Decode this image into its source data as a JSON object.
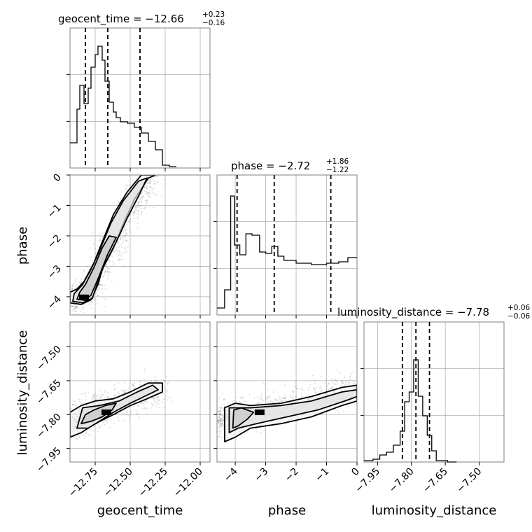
{
  "chart_data": {
    "type": "corner",
    "parameters": [
      "geocent_time",
      "phase",
      "luminosity_distance"
    ],
    "colors": {
      "line": "#000000",
      "grid": "#b0b0b0",
      "points": "#000000",
      "frame": "#808080"
    },
    "grid": true,
    "titles": [
      {
        "name": "geocent_time",
        "median": "−12.66",
        "plus": "+0.23",
        "minus": "−0.16"
      },
      {
        "name": "phase",
        "median": "−2.72",
        "plus": "+1.86",
        "minus": "−1.22"
      },
      {
        "name": "luminosity_distance",
        "median": "−7.78",
        "plus": "+0.06",
        "minus": "−0.06"
      }
    ],
    "axes": [
      {
        "label": "geocent_time",
        "range": [
          -12.93,
          -11.93
        ],
        "ticks": [
          -12.75,
          -12.5,
          -12.25,
          -12.0
        ],
        "tick_labels": [
          "−12.75",
          "−12.50",
          "−12.25",
          "−12.00"
        ]
      },
      {
        "label": "phase",
        "range": [
          -4.6,
          0.0
        ],
        "ticks": [
          -4,
          -3,
          -2,
          -1,
          0
        ],
        "tick_labels": [
          "−4",
          "−3",
          "−2",
          "−1",
          "0"
        ]
      },
      {
        "label": "luminosity_distance",
        "range": [
          -8.01,
          -7.39
        ],
        "ticks": [
          -7.95,
          -7.8,
          -7.65,
          -7.5
        ],
        "tick_labels": [
          "−7.95",
          "−7.80",
          "−7.65",
          "−7.50"
        ]
      }
    ],
    "hist_ylim": [
      0,
      1.0
    ],
    "histograms": [
      {
        "param": "geocent_time",
        "bin_edges": [
          -12.93,
          -12.88,
          -12.86,
          -12.83,
          -12.8,
          -12.78,
          -12.75,
          -12.73,
          -12.7,
          -12.68,
          -12.65,
          -12.62,
          -12.6,
          -12.57,
          -12.52,
          -12.47,
          -12.42,
          -12.37,
          -12.32,
          -12.27,
          -12.22,
          -12.17
        ],
        "counts": [
          0.18,
          0.42,
          0.59,
          0.46,
          0.57,
          0.72,
          0.81,
          0.87,
          0.77,
          0.62,
          0.47,
          0.4,
          0.36,
          0.33,
          0.32,
          0.29,
          0.25,
          0.19,
          0.13,
          0.02,
          0.01
        ],
        "quantiles": [
          -12.82,
          -12.66,
          -12.43
        ]
      },
      {
        "param": "phase",
        "bin_edges": [
          -4.6,
          -4.35,
          -4.15,
          -4.03,
          -3.85,
          -3.65,
          -3.45,
          -3.2,
          -3.0,
          -2.8,
          -2.6,
          -2.4,
          -2.0,
          -1.5,
          -1.0,
          -0.6,
          -0.3,
          0.0
        ],
        "counts": [
          0.05,
          0.18,
          0.85,
          0.5,
          0.43,
          0.58,
          0.57,
          0.45,
          0.44,
          0.49,
          0.42,
          0.39,
          0.37,
          0.36,
          0.37,
          0.38,
          0.41
        ],
        "quantiles": [
          -3.94,
          -2.72,
          -0.86
        ]
      },
      {
        "param": "luminosity_distance",
        "bin_edges": [
          -8.01,
          -7.97,
          -7.94,
          -7.91,
          -7.88,
          -7.85,
          -7.83,
          -7.81,
          -7.79,
          -7.77,
          -7.75,
          -7.73,
          -7.71,
          -7.69,
          -7.67,
          -7.64,
          -7.6
        ],
        "counts": [
          0.01,
          0.02,
          0.05,
          0.07,
          0.12,
          0.22,
          0.43,
          0.5,
          0.73,
          0.47,
          0.33,
          0.19,
          0.08,
          0.01,
          0.01,
          0.0
        ],
        "quantiles": [
          -7.84,
          -7.78,
          -7.72
        ]
      }
    ],
    "scatter_blobs": [
      {
        "x_param": "geocent_time",
        "y_param": "phase",
        "trend": [
          [
            -12.93,
            -4.1
          ],
          [
            -12.85,
            -4.0
          ],
          [
            -12.75,
            -3.5
          ],
          [
            -12.66,
            -2.6
          ],
          [
            -12.6,
            -2.0
          ],
          [
            -12.5,
            -1.2
          ],
          [
            -12.45,
            -0.6
          ],
          [
            -12.32,
            0.0
          ]
        ],
        "spread": [
          0.045,
          0.25
        ]
      },
      {
        "x_param": "geocent_time",
        "y_param": "luminosity_distance",
        "trend": [
          [
            -12.93,
            -7.86
          ],
          [
            -12.82,
            -7.8
          ],
          [
            -12.72,
            -7.78
          ],
          [
            -12.6,
            -7.75
          ],
          [
            -12.45,
            -7.72
          ],
          [
            -12.27,
            -7.68
          ]
        ],
        "spread": [
          0.05,
          0.035
        ]
      },
      {
        "x_param": "phase",
        "y_param": "luminosity_distance",
        "trend": [
          [
            -4.6,
            -7.82
          ],
          [
            -4.0,
            -7.81
          ],
          [
            -3.0,
            -7.78
          ],
          [
            -2.0,
            -7.75
          ],
          [
            -1.0,
            -7.72
          ],
          [
            0.0,
            -7.67
          ]
        ],
        "spread": [
          0.25,
          0.035
        ]
      }
    ],
    "contours": [
      {
        "x_param": "geocent_time",
        "y_param": "phase",
        "levels": [
          [
            [
              -12.93,
              -4.2
            ],
            [
              -12.85,
              -4.25
            ],
            [
              -12.78,
              -4.1
            ],
            [
              -12.73,
              -3.6
            ],
            [
              -12.7,
              -3.1
            ],
            [
              -12.62,
              -2.4
            ],
            [
              -12.55,
              -1.6
            ],
            [
              -12.47,
              -0.8
            ],
            [
              -12.37,
              -0.1
            ],
            [
              -12.32,
              0.0
            ],
            [
              -12.42,
              0.0
            ],
            [
              -12.52,
              -0.55
            ],
            [
              -12.62,
              -1.3
            ],
            [
              -12.7,
              -2.2
            ],
            [
              -12.76,
              -2.9
            ],
            [
              -12.83,
              -3.5
            ],
            [
              -12.88,
              -3.75
            ],
            [
              -12.93,
              -3.85
            ]
          ],
          [
            [
              -12.91,
              -4.15
            ],
            [
              -12.84,
              -4.2
            ],
            [
              -12.77,
              -4.05
            ],
            [
              -12.73,
              -3.5
            ],
            [
              -12.69,
              -3.0
            ],
            [
              -12.6,
              -2.2
            ],
            [
              -12.52,
              -1.4
            ],
            [
              -12.43,
              -0.6
            ],
            [
              -12.38,
              -0.1
            ],
            [
              -12.44,
              -0.2
            ],
            [
              -12.55,
              -0.85
            ],
            [
              -12.64,
              -1.6
            ],
            [
              -12.72,
              -2.5
            ],
            [
              -12.78,
              -3.1
            ],
            [
              -12.84,
              -3.6
            ],
            [
              -12.9,
              -3.9
            ]
          ],
          [
            [
              -12.88,
              -4.08
            ],
            [
              -12.82,
              -4.12
            ],
            [
              -12.78,
              -3.95
            ],
            [
              -12.72,
              -3.3
            ],
            [
              -12.66,
              -2.6
            ],
            [
              -12.6,
              -2.05
            ],
            [
              -12.65,
              -2.0
            ],
            [
              -12.7,
              -2.4
            ],
            [
              -12.76,
              -3.05
            ],
            [
              -12.82,
              -3.6
            ],
            [
              -12.86,
              -3.85
            ]
          ]
        ]
      },
      {
        "x_param": "geocent_time",
        "y_param": "luminosity_distance",
        "levels": [
          [
            [
              -12.93,
              -7.9
            ],
            [
              -12.85,
              -7.88
            ],
            [
              -12.75,
              -7.84
            ],
            [
              -12.62,
              -7.8
            ],
            [
              -12.5,
              -7.76
            ],
            [
              -12.38,
              -7.73
            ],
            [
              -12.27,
              -7.7
            ],
            [
              -12.27,
              -7.66
            ],
            [
              -12.37,
              -7.66
            ],
            [
              -12.5,
              -7.7
            ],
            [
              -12.62,
              -7.73
            ],
            [
              -12.75,
              -7.74
            ],
            [
              -12.85,
              -7.76
            ],
            [
              -12.93,
              -7.79
            ]
          ],
          [
            [
              -12.88,
              -7.86
            ],
            [
              -12.8,
              -7.86
            ],
            [
              -12.72,
              -7.83
            ],
            [
              -12.62,
              -7.79
            ],
            [
              -12.5,
              -7.75
            ],
            [
              -12.4,
              -7.72
            ],
            [
              -12.3,
              -7.69
            ],
            [
              -12.34,
              -7.67
            ],
            [
              -12.45,
              -7.7
            ],
            [
              -12.58,
              -7.74
            ],
            [
              -12.72,
              -7.76
            ],
            [
              -12.84,
              -7.77
            ]
          ],
          [
            [
              -12.85,
              -7.84
            ],
            [
              -12.78,
              -7.83
            ],
            [
              -12.7,
              -7.81
            ],
            [
              -12.63,
              -7.78
            ],
            [
              -12.6,
              -7.75
            ],
            [
              -12.68,
              -7.76
            ],
            [
              -12.76,
              -7.78
            ],
            [
              -12.82,
              -7.8
            ]
          ]
        ]
      },
      {
        "x_param": "phase",
        "y_param": "luminosity_distance",
        "levels": [
          [
            [
              -4.35,
              -7.92
            ],
            [
              -4.0,
              -7.9
            ],
            [
              -3.5,
              -7.86
            ],
            [
              -2.5,
              -7.84
            ],
            [
              -1.5,
              -7.81
            ],
            [
              -0.5,
              -7.76
            ],
            [
              0.0,
              -7.74
            ],
            [
              0.0,
              -7.67
            ],
            [
              -0.5,
              -7.68
            ],
            [
              -1.5,
              -7.72
            ],
            [
              -2.5,
              -7.75
            ],
            [
              -3.5,
              -7.76
            ],
            [
              -4.0,
              -7.75
            ],
            [
              -4.35,
              -7.77
            ]
          ],
          [
            [
              -4.2,
              -7.88
            ],
            [
              -3.9,
              -7.86
            ],
            [
              -3.3,
              -7.84
            ],
            [
              -2.3,
              -7.81
            ],
            [
              -1.3,
              -7.78
            ],
            [
              -0.4,
              -7.74
            ],
            [
              0.0,
              -7.72
            ],
            [
              0.0,
              -7.69
            ],
            [
              -0.5,
              -7.7
            ],
            [
              -1.5,
              -7.74
            ],
            [
              -2.5,
              -7.76
            ],
            [
              -3.5,
              -7.77
            ],
            [
              -4.2,
              -7.77
            ]
          ],
          [
            [
              -4.08,
              -7.86
            ],
            [
              -3.9,
              -7.85
            ],
            [
              -3.6,
              -7.82
            ],
            [
              -3.4,
              -7.79
            ],
            [
              -3.8,
              -7.77
            ],
            [
              -4.05,
              -7.78
            ]
          ]
        ]
      }
    ],
    "density_peaks": [
      {
        "x_param": "geocent_time",
        "y_param": "phase",
        "x": -12.83,
        "y": -4.02
      },
      {
        "x_param": "geocent_time",
        "y_param": "luminosity_distance",
        "x": -12.67,
        "y": -7.79
      },
      {
        "x_param": "phase",
        "y_param": "luminosity_distance",
        "x": -3.2,
        "y": -7.79
      }
    ]
  }
}
